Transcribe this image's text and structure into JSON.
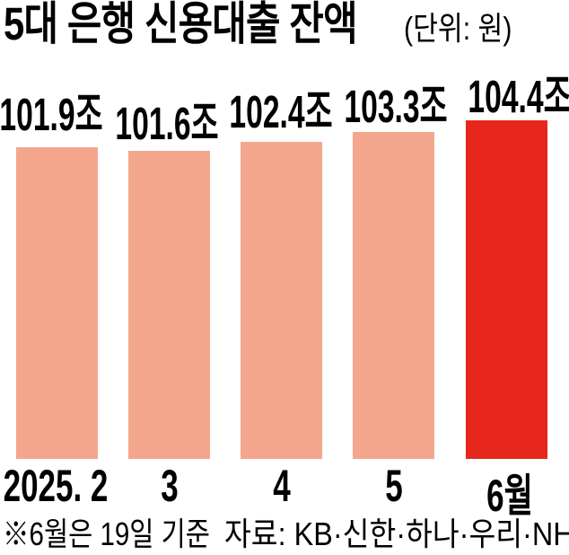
{
  "title": "5대 은행 신용대출 잔액",
  "unit": "(단위: 원)",
  "footnote": "※6월은 19일 기준",
  "source": "자료: KB·신한·하나·우리·NH",
  "colors": {
    "bar": "#F4A68D",
    "highlight": "#E7271D",
    "text": "#000000"
  },
  "chart_data": {
    "type": "bar",
    "title": "5대 은행 신용대출 잔액",
    "unit": "(단위: 원)",
    "categories": [
      "2025. 2",
      "3",
      "4",
      "5",
      "6월"
    ],
    "values": [
      101.9,
      101.6,
      102.4,
      103.3,
      104.4
    ],
    "value_labels": [
      "101.9조",
      "101.6조",
      "102.4조",
      "103.3조",
      "104.4조"
    ],
    "highlight_index": 4,
    "grid": false,
    "y_axis_visible": false,
    "legend": "none"
  }
}
